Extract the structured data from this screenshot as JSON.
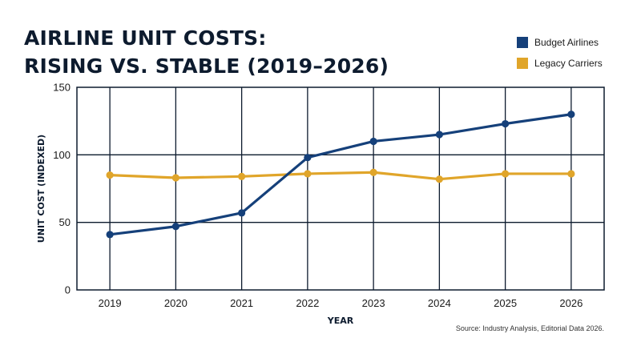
{
  "title_lines": [
    "AIRLINE UNIT COSTS:",
    "RISING VS. STABLE (2019–2026)"
  ],
  "source": "Source: Industry Analysis, Editorial Data 2026.",
  "colors": {
    "budget": "#15407a",
    "legacy": "#e0a52a",
    "grid": "#0d1b2e"
  },
  "chart_data": {
    "type": "line",
    "title": "AIRLINE UNIT COSTS: RISING VS. STABLE (2019–2026)",
    "xlabel": "YEAR",
    "ylabel": "UNIT COST (INDEXED)",
    "categories": [
      "2019",
      "2020",
      "2021",
      "2022",
      "2023",
      "2024",
      "2025",
      "2026"
    ],
    "ylim": [
      0,
      150
    ],
    "yticks": [
      0,
      50,
      100,
      150
    ],
    "grid": true,
    "legend_position": "top-right",
    "series": [
      {
        "name": "Budget Airlines",
        "color": "#15407a",
        "values": [
          41,
          47,
          57,
          98,
          110,
          115,
          123,
          130
        ]
      },
      {
        "name": "Legacy Carriers",
        "color": "#e0a52a",
        "values": [
          85,
          83,
          84,
          86,
          87,
          82,
          86,
          86
        ]
      }
    ]
  }
}
